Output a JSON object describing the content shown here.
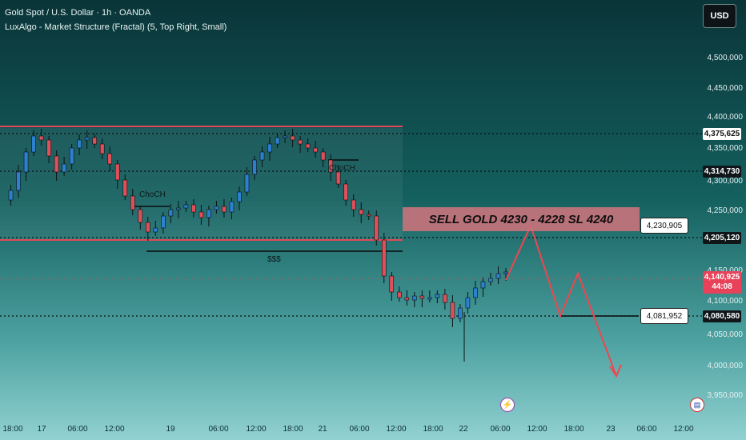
{
  "header": {
    "symbol_line": "Gold Spot / U.S. Dollar · 1h · OANDA",
    "indicator_line": "LuxAlgo - Market Structure (Fractal) (5, Top Right, Small)"
  },
  "toolbar": {
    "currency_button": "USD"
  },
  "price_axis": {
    "ticks": [
      "4,500,000",
      "4,450,000",
      "4,400,000",
      "4,350,000",
      "4,300,000",
      "4,250,000",
      "4,150,000",
      "4,100,000",
      "4,050,000",
      "4,000,000",
      "3,950,000"
    ]
  },
  "price_badges": {
    "level_1": "4,375,625",
    "level_2": "4,314,730",
    "level_3": "4,205,120",
    "current_price": "4,140,925",
    "countdown": "44:08",
    "level_4": "4,080,580"
  },
  "callouts": {
    "target_high": "4,230,905",
    "target_low": "4,081,952"
  },
  "annotations": {
    "sell_zone": "SELL GOLD 4230 - 4228 SL 4240",
    "choch_left": "ChoCH",
    "choch_right": "ChoCH",
    "liquidity": "$$$"
  },
  "time_axis": {
    "ticks": [
      "18:00",
      "17",
      "06:00",
      "12:00",
      "19",
      "06:00",
      "12:00",
      "18:00",
      "21",
      "06:00",
      "12:00",
      "18:00",
      "22",
      "06:00",
      "12:00",
      "18:00",
      "23",
      "06:00",
      "12:00"
    ]
  },
  "colors": {
    "up_candle": "#2d7fd0",
    "down_candle": "#e0505a",
    "range_line": "#e04a58",
    "projection": "#f0454f",
    "sell_zone": "#c5737b"
  },
  "icons": {
    "event_marker": "lightning-icon",
    "flag_marker": "us-flag-icon"
  }
}
